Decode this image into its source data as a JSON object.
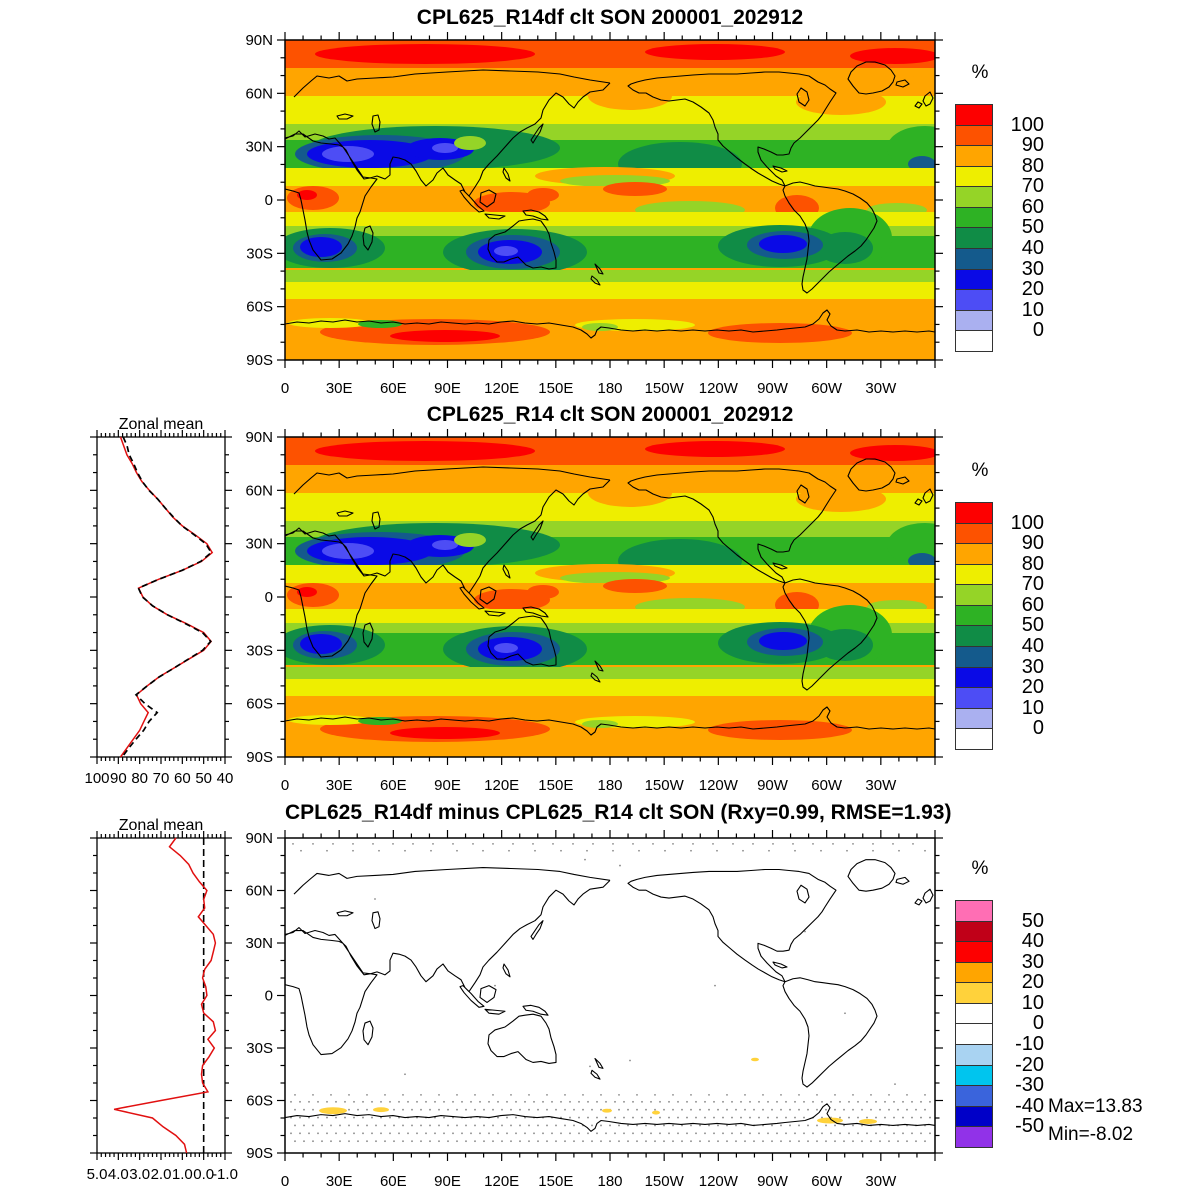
{
  "ui": {
    "colorbar_unit": "%",
    "zonal_title": "Zonal mean",
    "stats_max": "Max=13.83",
    "stats_min": "Min=-8.02"
  },
  "chart_data": [
    {
      "type": "heatmap",
      "subtype": "filled-contour-world-map",
      "title": "CPL625_R14df clt SON 200001_202912",
      "variable": "clt",
      "season": "SON",
      "period": "200001_202912",
      "units": "%",
      "projection": "cylindrical equidistant, lon 0E..360E left-to-right, lat 90N..90S top-to-bottom",
      "levels": [
        0,
        10,
        20,
        30,
        40,
        50,
        60,
        70,
        80,
        90,
        100
      ],
      "palette_top_to_bottom": [
        "#fd0000",
        "#fd5200",
        "#ffa500",
        "#eeee00",
        "#95d427",
        "#2eb224",
        "#108c46",
        "#145a8c",
        "#0a0ae6",
        "#4d4df5",
        "#aab0f0",
        "#ffffff"
      ],
      "colorbar_labels": [
        "100",
        "90",
        "80",
        "70",
        "60",
        "50",
        "40",
        "30",
        "20",
        "10",
        "0"
      ],
      "lon_ticks": [
        "0",
        "30E",
        "60E",
        "90E",
        "120E",
        "150E",
        "180",
        "150W",
        "120W",
        "90W",
        "60W",
        "30W"
      ],
      "lat_ticks": [
        "90N",
        "60N",
        "30N",
        "0",
        "30S",
        "60S",
        "90S"
      ],
      "zonal_mean": {
        "lat": [
          90,
          85,
          80,
          75,
          70,
          65,
          60,
          55,
          50,
          45,
          40,
          35,
          30,
          25,
          20,
          15,
          10,
          5,
          0,
          -5,
          -10,
          -15,
          -20,
          -25,
          -30,
          -35,
          -40,
          -45,
          -50,
          -55,
          -60,
          -65,
          -70,
          -75,
          -80,
          -85,
          -90
        ],
        "clt_percent": [
          89,
          87.5,
          86,
          83.5,
          81.5,
          79,
          75.5,
          71.5,
          68,
          64.5,
          60,
          54,
          48.5,
          46,
          51,
          60,
          71,
          80.5,
          78.5,
          74,
          67,
          58,
          50,
          46.5,
          50,
          57,
          64,
          71,
          76.5,
          81.5,
          79.5,
          76,
          78,
          80,
          83,
          86,
          89
        ]
      }
    },
    {
      "type": "heatmap",
      "subtype": "filled-contour-world-map",
      "title": "CPL625_R14 clt SON 200001_202912",
      "variable": "clt",
      "season": "SON",
      "period": "200001_202912",
      "units": "%",
      "levels": [
        0,
        10,
        20,
        30,
        40,
        50,
        60,
        70,
        80,
        90,
        100
      ],
      "palette_top_to_bottom": [
        "#fd0000",
        "#fd5200",
        "#ffa500",
        "#eeee00",
        "#95d427",
        "#2eb224",
        "#108c46",
        "#145a8c",
        "#0a0ae6",
        "#4d4df5",
        "#aab0f0",
        "#ffffff"
      ],
      "colorbar_labels": [
        "100",
        "90",
        "80",
        "70",
        "60",
        "50",
        "40",
        "30",
        "20",
        "10",
        "0"
      ],
      "lon_ticks": [
        "0",
        "30E",
        "60E",
        "90E",
        "120E",
        "150E",
        "180",
        "150W",
        "120W",
        "90W",
        "60W",
        "30W"
      ],
      "lat_ticks": [
        "90N",
        "60N",
        "30N",
        "0",
        "30S",
        "60S",
        "90S"
      ],
      "zonal_mean": {
        "lat": [
          90,
          85,
          80,
          75,
          70,
          65,
          60,
          55,
          50,
          45,
          40,
          35,
          30,
          25,
          20,
          15,
          10,
          5,
          0,
          -5,
          -10,
          -15,
          -20,
          -25,
          -30,
          -35,
          -40,
          -45,
          -50,
          -55,
          -60,
          -65,
          -70,
          -75,
          -80,
          -85,
          -90
        ],
        "clt_percent": [
          87.7,
          85.9,
          84.9,
          82.8,
          81,
          78.8,
          75.65,
          71.5,
          68.05,
          64.25,
          60.1,
          54.45,
          49.05,
          46.45,
          51.35,
          60.05,
          70.95,
          80.6,
          78.65,
          73.9,
          67,
          58.45,
          50.55,
          46.7,
          50.5,
          57.25,
          63.95,
          70.9,
          76.45,
          81.7,
          77.5,
          71.8,
          75.6,
          78.1,
          81.7,
          85.1,
          88.2
        ]
      }
    },
    {
      "type": "heatmap",
      "subtype": "filled-contour-world-map-difference",
      "title": "CPL625_R14df minus CPL625_R14 clt SON (Rxy=0.99, RMSE=1.93)",
      "variable": "clt difference",
      "season": "SON",
      "units": "%",
      "stats": {
        "rxy": 0.99,
        "rmse": 1.93,
        "max": 13.83,
        "min": -8.02
      },
      "levels": [
        -50,
        -40,
        -30,
        -20,
        -10,
        0,
        10,
        20,
        30,
        40,
        50
      ],
      "palette_top_to_bottom": [
        "#ff6eb4",
        "#c00018",
        "#fd0000",
        "#ffa500",
        "#ffd23b",
        "#ffffff",
        "#ffffff",
        "#a9d3f2",
        "#00c5ee",
        "#3a64dc",
        "#0000c8",
        "#9132e8"
      ],
      "colorbar_labels": [
        "50",
        "40",
        "30",
        "20",
        "10",
        "0",
        "-10",
        "-20",
        "-30",
        "-40",
        "-50"
      ],
      "lon_ticks": [
        "0",
        "30E",
        "60E",
        "90E",
        "120E",
        "150E",
        "180",
        "150W",
        "120W",
        "90W",
        "60W",
        "30W"
      ],
      "lat_ticks": [
        "90N",
        "60N",
        "30N",
        "0",
        "30S",
        "60S",
        "90S"
      ],
      "notes": "field is near zero (white) almost everywhere; small +10..20% (gold) patches along the Antarctic coast near 30E, 150E, 165E; gray stippling south of ~60S and near the north edge",
      "zonal_mean": {
        "lat": [
          90,
          85,
          80,
          75,
          70,
          65,
          60,
          55,
          50,
          45,
          40,
          35,
          30,
          25,
          20,
          15,
          10,
          5,
          0,
          -5,
          -10,
          -15,
          -20,
          -25,
          -30,
          -35,
          -40,
          -45,
          -50,
          -55,
          -60,
          -65,
          -70,
          -75,
          -80,
          -85,
          -90
        ],
        "clt_percent": [
          1.3,
          1.6,
          1.1,
          0.7,
          0.5,
          0.2,
          -0.15,
          0,
          -0.05,
          0.25,
          -0.1,
          -0.45,
          -0.55,
          -0.45,
          -0.35,
          -0.05,
          0.05,
          -0.1,
          -0.15,
          0.1,
          0,
          -0.45,
          -0.55,
          -0.2,
          -0.5,
          -0.25,
          0.05,
          0.1,
          0.05,
          -0.2,
          2,
          4.2,
          2.4,
          1.9,
          1.3,
          0.9,
          0.8
        ]
      }
    }
  ],
  "zonal_panels": [
    {
      "title": "Zonal mean",
      "x_ticks": [
        "100",
        "90",
        "80",
        "70",
        "60",
        "50",
        "40"
      ],
      "xlim": [
        100,
        40
      ],
      "series": [
        {
          "name": "CPL625_R14df",
          "data_index": 0,
          "color": "#e11010",
          "style": "solid"
        },
        {
          "name": "CPL625_R14",
          "data_index": 1,
          "color": "#000000",
          "style": "dashed"
        }
      ]
    },
    {
      "title": "Zonal mean",
      "x_ticks": [
        "5.0",
        "4.0",
        "3.0",
        "2.0",
        "1.0",
        "0.0",
        "-1.0"
      ],
      "xlim": [
        5,
        -1
      ],
      "zero_line": 0,
      "series": [
        {
          "name": "CPL625_R14df minus CPL625_R14",
          "data_index": 2,
          "color": "#e11010",
          "style": "solid"
        }
      ]
    }
  ]
}
